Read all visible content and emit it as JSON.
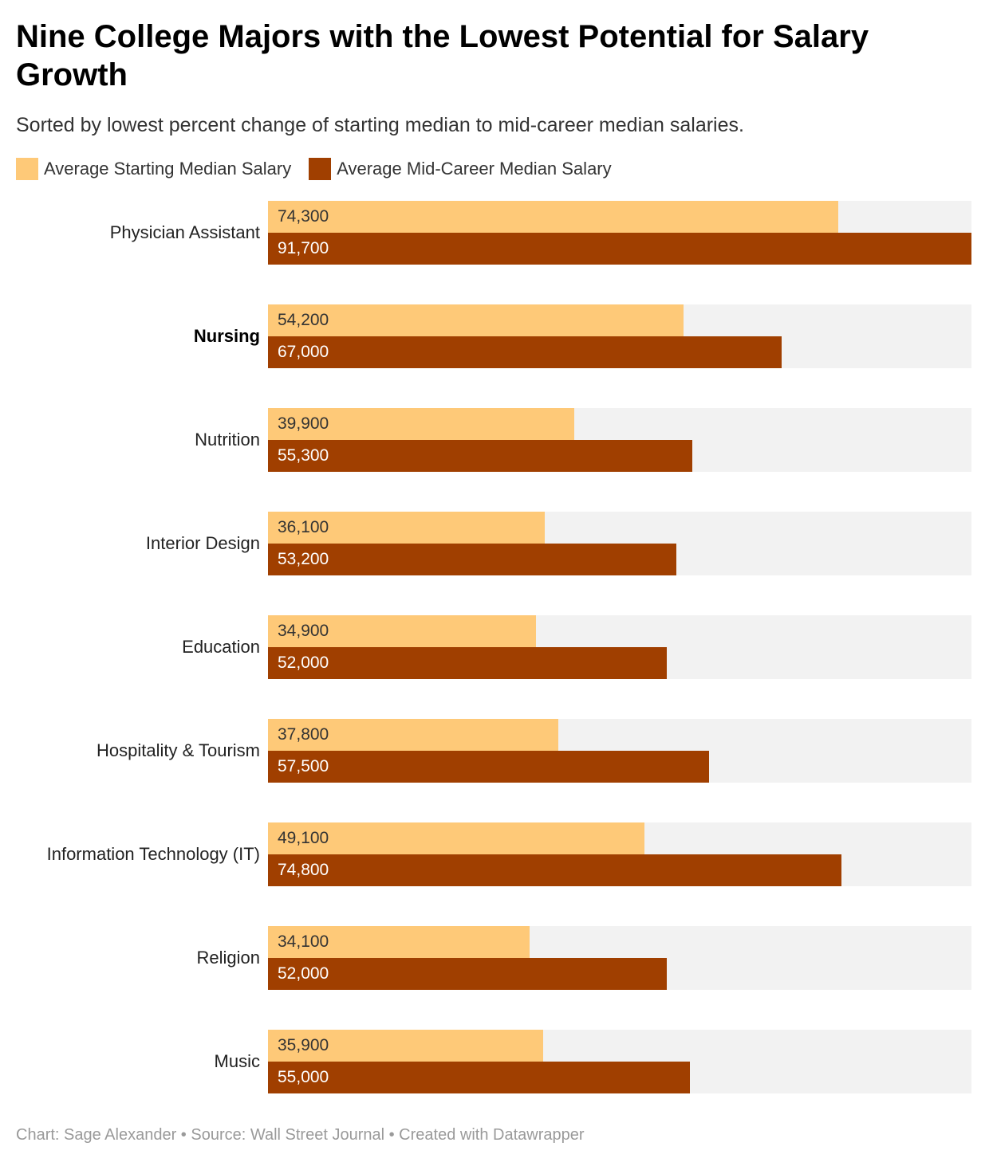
{
  "chart_data": {
    "type": "bar",
    "orientation": "horizontal",
    "title": "Nine College Majors with the Lowest Potential for Salary Growth",
    "subtitle": "Sorted by lowest percent change of starting median to mid-career median salaries.",
    "categories": [
      "Physician Assistant",
      "Nursing",
      "Nutrition",
      "Interior Design",
      "Education",
      "Hospitality & Tourism",
      "Information Technology (IT)",
      "Religion",
      "Music"
    ],
    "highlighted_category": "Nursing",
    "series": [
      {
        "name": "Average Starting Median Salary",
        "color": "#fec978",
        "values": [
          74300,
          54200,
          39900,
          36100,
          34900,
          37800,
          49100,
          34100,
          35900
        ],
        "labels": [
          "74,300",
          "54,200",
          "39,900",
          "36,100",
          "34,900",
          "37,800",
          "49,100",
          "34,100",
          "35,900"
        ]
      },
      {
        "name": "Average Mid-Career Median Salary",
        "color": "#a03f00",
        "values": [
          91700,
          67000,
          55300,
          53200,
          52000,
          57500,
          74800,
          52000,
          55000
        ],
        "labels": [
          "91,700",
          "67,000",
          "55,300",
          "53,200",
          "52,000",
          "57,500",
          "74,800",
          "52,000",
          "55,000"
        ]
      }
    ],
    "xlim": [
      0,
      91700
    ],
    "grid": false,
    "legend_position": "top-left",
    "track_color": "#f2f2f2"
  },
  "footer": "Chart: Sage Alexander • Source: Wall Street Journal • Created with Datawrapper"
}
